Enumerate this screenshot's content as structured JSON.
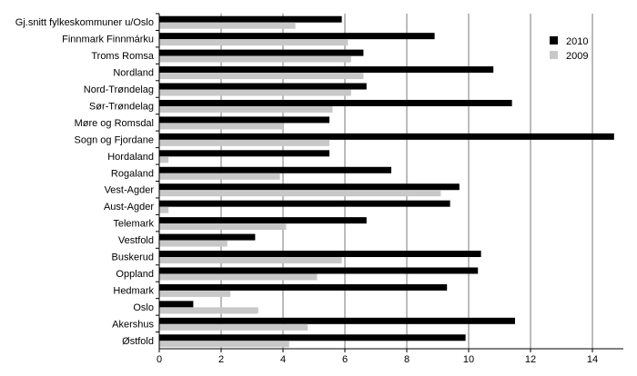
{
  "chart_data": {
    "type": "bar",
    "orientation": "horizontal",
    "title": "",
    "xlabel": "",
    "ylabel": "",
    "xlim": [
      0,
      15
    ],
    "xticks": [
      0,
      2,
      4,
      6,
      8,
      10,
      12,
      14
    ],
    "grid": true,
    "legend_position": "top-right",
    "categories": [
      "Gj.snitt fylkeskommuner u/Oslo",
      "Finnmark Finnmárku",
      "Troms Romsa",
      "Nordland",
      "Nord-Trøndelag",
      "Sør-Trøndelag",
      "Møre og Romsdal",
      "Sogn og Fjordane",
      "Hordaland",
      "Rogaland",
      "Vest-Agder",
      "Aust-Agder",
      "Telemark",
      "Vestfold",
      "Buskerud",
      "Oppland",
      "Hedmark",
      "Oslo",
      "Akershus",
      "Østfold"
    ],
    "series": [
      {
        "name": "2010",
        "color": "#000000",
        "values": [
          5.9,
          8.9,
          6.6,
          10.8,
          6.7,
          11.4,
          5.5,
          14.7,
          5.5,
          7.5,
          9.7,
          9.4,
          6.7,
          3.1,
          10.4,
          10.3,
          9.3,
          1.1,
          11.5,
          9.9
        ]
      },
      {
        "name": "2009",
        "color": "#c8c8c8",
        "values": [
          4.4,
          6.1,
          6.2,
          6.6,
          6.2,
          5.6,
          4.0,
          5.5,
          0.3,
          3.9,
          9.1,
          0.3,
          4.1,
          2.2,
          5.9,
          5.1,
          2.3,
          3.2,
          4.8,
          4.2
        ]
      }
    ]
  }
}
